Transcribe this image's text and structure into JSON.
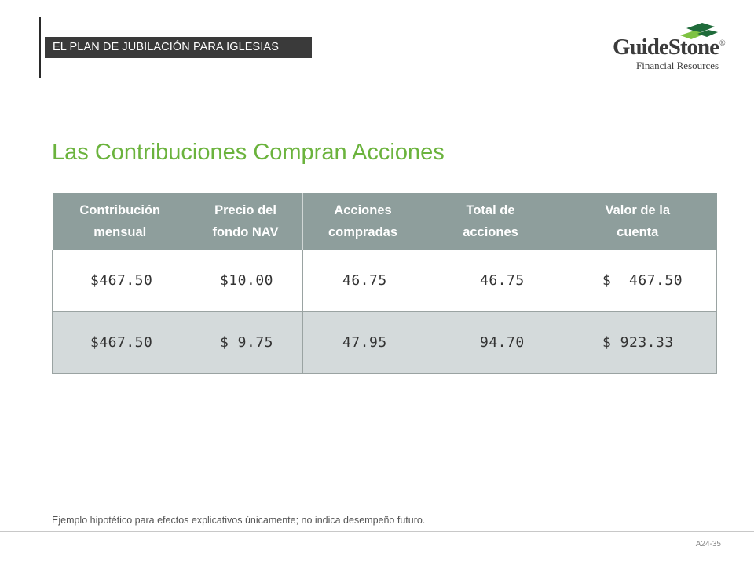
{
  "header": {
    "banner_text": "EL PLAN DE JUBILACIÓN PARA IGLESIAS"
  },
  "logo": {
    "name": "GuideStone",
    "registered_mark": "®",
    "subtitle": "Financial Resources",
    "colors": {
      "mark_dark": "#1f6b3a",
      "mark_light": "#7ec242",
      "text": "#3b3b3b"
    }
  },
  "slide": {
    "title": "Las Contribuciones Compran Acciones",
    "title_color": "#6bb33d"
  },
  "table": {
    "headers": [
      [
        "Contribución",
        "mensual"
      ],
      [
        "Precio del",
        "fondo NAV"
      ],
      [
        "Acciones",
        "compradas"
      ],
      [
        "Total de",
        "acciones"
      ],
      [
        "Valor de la",
        "cuenta"
      ]
    ],
    "rows": [
      [
        "$467.50",
        "$10.00",
        "46.75",
        "46.75",
        "$  467.50"
      ],
      [
        "$467.50",
        "$ 9.75",
        "47.95",
        "94.70",
        "$ 923.33"
      ]
    ],
    "colors": {
      "header_bg": "#8e9e9c",
      "row_alt_bg": "#d4dadb"
    }
  },
  "footer": {
    "footnote": "Ejemplo hipotético para efectos explicativos únicamente; no indica desempeño futuro.",
    "page_code": "A24-35"
  }
}
